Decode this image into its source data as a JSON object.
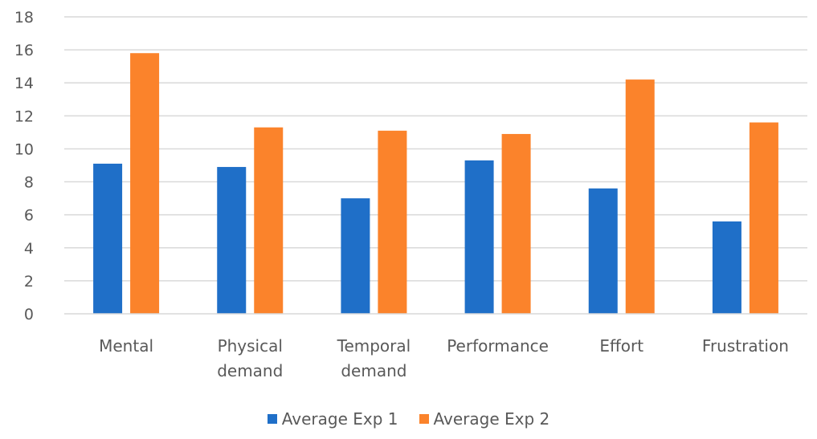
{
  "chart_data": {
    "type": "bar",
    "categories": [
      "Mental",
      "Physical demand",
      "Temporal demand",
      "Performance",
      "Effort",
      "Frustration"
    ],
    "category_lines": [
      [
        "Mental"
      ],
      [
        "Physical",
        "demand"
      ],
      [
        "Temporal",
        "demand"
      ],
      [
        "Performance"
      ],
      [
        "Effort"
      ],
      [
        "Frustration"
      ]
    ],
    "series": [
      {
        "name": "Average Exp 1",
        "color": "#1f6fc8",
        "values": [
          9.1,
          8.9,
          7.0,
          9.3,
          7.6,
          5.6
        ]
      },
      {
        "name": "Average Exp 2",
        "color": "#fb832b",
        "values": [
          15.8,
          11.3,
          11.1,
          10.9,
          14.2,
          11.6
        ]
      }
    ],
    "yticks": [
      "0",
      "2",
      "4",
      "6",
      "8",
      "10",
      "12",
      "14",
      "16",
      "18"
    ],
    "ylim": [
      0,
      18
    ],
    "grid": true,
    "legend_position": "bottom",
    "title": "",
    "xlabel": "",
    "ylabel": ""
  }
}
